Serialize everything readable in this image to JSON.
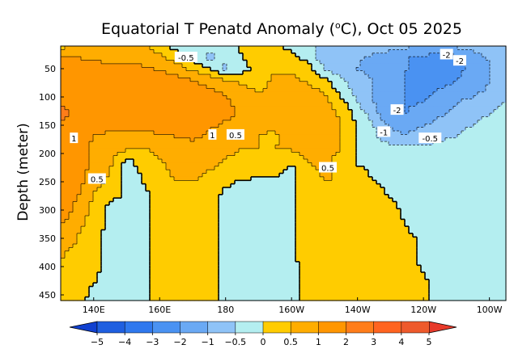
{
  "chart_data": {
    "type": "contour-map",
    "title": "Equatorial T Penatd Anomaly (",
    "title_degree": "o",
    "title_unit_suffix": "C), Oct 05 2025",
    "ylabel": "Depth (meter)",
    "xlabel": "",
    "x_axis": {
      "range": [
        130,
        265
      ],
      "ticks": [
        {
          "value": 140,
          "label": "140E"
        },
        {
          "value": 160,
          "label": "160E"
        },
        {
          "value": 180,
          "label": "180"
        },
        {
          "value": 200,
          "label": "160W"
        },
        {
          "value": 220,
          "label": "140W"
        },
        {
          "value": 240,
          "label": "120W"
        },
        {
          "value": 260,
          "label": "100W"
        }
      ]
    },
    "y_axis": {
      "range": [
        10,
        460
      ],
      "inverted": true,
      "ticks": [
        {
          "value": 50,
          "label": "50"
        },
        {
          "value": 100,
          "label": "100"
        },
        {
          "value": 150,
          "label": "150"
        },
        {
          "value": 200,
          "label": "200"
        },
        {
          "value": 250,
          "label": "250"
        },
        {
          "value": 300,
          "label": "300"
        },
        {
          "value": 350,
          "label": "350"
        },
        {
          "value": 400,
          "label": "400"
        },
        {
          "value": 450,
          "label": "450"
        }
      ]
    },
    "colorbar": {
      "levels": [
        -5,
        -4,
        -3,
        -2,
        -1,
        -0.5,
        0,
        0.5,
        1,
        2,
        3,
        4,
        5
      ],
      "labels": [
        "−5",
        "−4",
        "−3",
        "−2",
        "−1",
        "−0.5",
        "0",
        "0.5",
        "1",
        "2",
        "3",
        "4",
        "5"
      ],
      "colors": [
        "#1f5fe0",
        "#2f78ee",
        "#4a92f2",
        "#6aa9f4",
        "#8fc3f7",
        "#b4eef0",
        "#ffcc00",
        "#ffad00",
        "#ff9600",
        "#ff7d1a",
        "#ff6420",
        "#ee5a2c"
      ],
      "under_color": "#1040d0",
      "over_color": "#e83a2a"
    },
    "contour_labels": [
      {
        "text": "-0.5",
        "lon": 168,
        "depth": 30
      },
      {
        "text": "-2",
        "lon": 247,
        "depth": 25
      },
      {
        "text": "-2",
        "lon": 251,
        "depth": 36
      },
      {
        "text": "-2",
        "lon": 232,
        "depth": 123
      },
      {
        "text": "-1",
        "lon": 228,
        "depth": 162
      },
      {
        "text": "-0.5",
        "lon": 242,
        "depth": 173
      },
      {
        "text": "1",
        "lon": 134,
        "depth": 173
      },
      {
        "text": "1",
        "lon": 176,
        "depth": 167
      },
      {
        "text": "0.5",
        "lon": 183,
        "depth": 167
      },
      {
        "text": "0.5",
        "lon": 211,
        "depth": 225
      },
      {
        "text": "0.5",
        "lon": 141,
        "depth": 245
      }
    ],
    "anomaly_grid": {
      "lon": [
        130,
        135,
        140,
        145,
        150,
        155,
        160,
        165,
        170,
        175,
        180,
        185,
        190,
        195,
        200,
        205,
        210,
        215,
        220,
        225,
        230,
        235,
        240,
        245,
        250,
        255,
        260,
        265
      ],
      "depth": [
        10,
        30,
        50,
        70,
        90,
        110,
        130,
        150,
        170,
        190,
        210,
        230,
        250,
        270,
        290,
        310,
        330,
        350,
        370,
        390,
        410,
        430,
        450,
        460
      ],
      "values": [
        [
          0.3,
          0.9,
          0.8,
          0.7,
          0.8,
          0.6,
          0.3,
          -0.2,
          -0.3,
          -0.4,
          -0.1,
          0.05,
          0.1,
          0.05,
          -0.1,
          -0.3,
          -0.7,
          -0.8,
          -0.6,
          -0.4,
          -0.6,
          -0.8,
          -0.9,
          -1.0,
          -0.8,
          -0.6,
          -0.6,
          -0.5
        ],
        [
          1.0,
          1.0,
          0.9,
          0.9,
          0.8,
          0.7,
          0.6,
          0.3,
          -0.2,
          -0.6,
          -0.4,
          0.0,
          0.3,
          0.3,
          0.1,
          -0.2,
          -0.8,
          -1.0,
          -0.9,
          -1.2,
          -1.5,
          -2.0,
          -2.2,
          -2.5,
          -2.3,
          -1.5,
          -0.9,
          -0.8
        ],
        [
          1.2,
          1.2,
          1.2,
          1.1,
          1.2,
          1.1,
          0.9,
          0.7,
          0.4,
          0.0,
          -0.6,
          -0.2,
          0.2,
          0.4,
          0.4,
          0.2,
          -0.5,
          -0.9,
          -1.0,
          -1.1,
          -1.4,
          -2.0,
          -2.4,
          -2.6,
          -2.4,
          -1.6,
          -1.0,
          -0.8
        ],
        [
          1.6,
          1.3,
          1.2,
          1.3,
          1.3,
          1.5,
          1.4,
          1.2,
          1.0,
          0.8,
          0.5,
          0.4,
          0.3,
          0.6,
          0.6,
          0.4,
          0.1,
          -0.4,
          -0.9,
          -1.0,
          -1.5,
          -2.1,
          -2.6,
          -2.4,
          -2.0,
          -1.5,
          -1.0,
          -0.8
        ],
        [
          1.8,
          1.6,
          1.5,
          1.5,
          1.6,
          1.8,
          1.7,
          1.5,
          1.3,
          1.1,
          0.9,
          0.6,
          0.5,
          0.6,
          0.8,
          0.7,
          0.5,
          -0.2,
          -0.7,
          -1.0,
          -1.5,
          -2.0,
          -2.3,
          -1.9,
          -1.6,
          -1.2,
          -0.9,
          -0.7
        ],
        [
          2.0,
          1.8,
          1.6,
          1.6,
          1.8,
          1.7,
          1.8,
          1.8,
          1.6,
          1.4,
          1.1,
          0.8,
          0.6,
          0.7,
          0.9,
          0.9,
          0.7,
          0.2,
          -0.5,
          -1.0,
          -1.6,
          -2.1,
          -2.0,
          -1.5,
          -1.0,
          -0.8,
          -0.6,
          -0.5
        ],
        [
          2.1,
          1.9,
          1.5,
          1.4,
          1.5,
          1.6,
          1.7,
          1.7,
          1.6,
          1.5,
          1.2,
          0.9,
          0.7,
          0.7,
          0.9,
          1.0,
          0.8,
          0.4,
          -0.2,
          -0.8,
          -1.6,
          -2.0,
          -1.6,
          -1.1,
          -0.8,
          -0.6,
          -0.5,
          -0.4
        ],
        [
          2.0,
          1.6,
          1.2,
          1.1,
          1.1,
          1.2,
          1.3,
          1.3,
          1.2,
          1.1,
          0.9,
          0.7,
          0.6,
          0.6,
          0.8,
          0.9,
          0.8,
          0.5,
          0.0,
          -0.5,
          -1.1,
          -1.3,
          -1.0,
          -0.8,
          -0.6,
          -0.5,
          -0.4,
          -0.3
        ],
        [
          1.7,
          1.4,
          1.0,
          0.9,
          0.9,
          0.8,
          0.9,
          1.0,
          1.1,
          0.9,
          0.8,
          0.6,
          0.5,
          0.4,
          0.7,
          0.9,
          0.9,
          0.5,
          0.0,
          -0.4,
          -0.8,
          -0.9,
          -0.7,
          -0.6,
          -0.5,
          -0.4,
          -0.4,
          -0.3
        ],
        [
          1.6,
          1.2,
          0.9,
          1.0,
          0.6,
          0.5,
          0.7,
          0.8,
          0.8,
          0.7,
          0.6,
          0.5,
          0.5,
          0.5,
          0.6,
          0.8,
          0.8,
          0.5,
          0.0,
          -0.2,
          -0.4,
          -0.4,
          -0.4,
          -0.4,
          -0.3,
          -0.3,
          -0.3,
          -0.3
        ],
        [
          1.8,
          1.3,
          0.8,
          0.6,
          -0.1,
          0.2,
          0.5,
          0.6,
          0.7,
          0.6,
          0.5,
          0.4,
          0.3,
          0.2,
          0.1,
          0.6,
          0.7,
          0.3,
          -0.1,
          -0.2,
          -0.3,
          -0.3,
          -0.3,
          -0.3,
          -0.3,
          -0.3,
          -0.3,
          -0.3
        ],
        [
          2.0,
          1.3,
          0.8,
          0.5,
          -0.2,
          0.1,
          0.4,
          0.6,
          0.6,
          0.5,
          0.4,
          0.3,
          0.2,
          0.1,
          -0.1,
          0.3,
          0.6,
          0.4,
          0.1,
          -0.1,
          -0.2,
          -0.2,
          -0.2,
          -0.2,
          -0.2,
          -0.2,
          -0.2,
          -0.2
        ],
        [
          1.9,
          1.2,
          0.7,
          0.4,
          -0.3,
          0.0,
          0.3,
          0.5,
          0.5,
          0.4,
          0.1,
          -0.1,
          -0.1,
          -0.1,
          -0.1,
          0.2,
          0.5,
          0.5,
          0.3,
          0.0,
          -0.1,
          -0.2,
          -0.2,
          -0.2,
          -0.2,
          -0.2,
          -0.2,
          -0.2
        ],
        [
          1.6,
          1.1,
          0.5,
          0.3,
          -0.1,
          -0.1,
          0.2,
          0.4,
          0.4,
          0.3,
          -0.1,
          -0.2,
          -0.2,
          -0.2,
          -0.1,
          0.2,
          0.4,
          0.5,
          0.4,
          0.2,
          -0.1,
          -0.2,
          -0.2,
          -0.2,
          -0.3,
          -0.2,
          -0.2,
          -0.2
        ],
        [
          1.4,
          0.9,
          0.4,
          -0.1,
          -0.2,
          -0.1,
          0.2,
          0.3,
          0.3,
          0.2,
          -0.2,
          -0.3,
          -0.3,
          -0.2,
          -0.1,
          0.2,
          0.4,
          0.5,
          0.4,
          0.3,
          0.1,
          -0.2,
          -0.2,
          -0.2,
          -0.3,
          -0.2,
          -0.2,
          -0.2
        ],
        [
          1.2,
          0.8,
          0.3,
          -0.2,
          -0.2,
          -0.1,
          0.2,
          0.3,
          0.3,
          0.2,
          -0.2,
          -0.3,
          -0.3,
          -0.2,
          -0.1,
          0.2,
          0.4,
          0.5,
          0.4,
          0.3,
          0.2,
          -0.1,
          -0.2,
          -0.2,
          -0.3,
          -0.2,
          -0.2,
          -0.2
        ],
        [
          1.0,
          0.6,
          0.3,
          -0.2,
          -0.2,
          -0.1,
          0.1,
          0.3,
          0.3,
          0.2,
          -0.2,
          -0.3,
          -0.3,
          -0.2,
          -0.1,
          0.2,
          0.3,
          0.4,
          0.4,
          0.3,
          0.2,
          0.0,
          -0.2,
          -0.2,
          -0.2,
          -0.2,
          -0.2,
          -0.2
        ],
        [
          0.8,
          0.5,
          0.2,
          -0.2,
          -0.2,
          -0.1,
          0.1,
          0.3,
          0.3,
          0.2,
          -0.2,
          -0.3,
          -0.3,
          -0.2,
          -0.1,
          0.2,
          0.2,
          0.3,
          0.4,
          0.3,
          0.2,
          0.1,
          -0.1,
          -0.2,
          -0.2,
          -0.2,
          -0.2,
          -0.2
        ],
        [
          0.6,
          0.4,
          0.2,
          -0.2,
          -0.2,
          -0.1,
          0.1,
          0.3,
          0.3,
          0.2,
          -0.2,
          -0.3,
          -0.3,
          -0.2,
          -0.1,
          0.2,
          0.2,
          0.3,
          0.4,
          0.3,
          0.3,
          0.1,
          -0.1,
          -0.2,
          -0.2,
          -0.2,
          -0.2,
          -0.2
        ],
        [
          0.5,
          0.3,
          0.1,
          -0.2,
          -0.2,
          -0.1,
          0.1,
          0.3,
          0.3,
          0.2,
          -0.2,
          -0.3,
          -0.3,
          -0.2,
          -0.1,
          0.2,
          0.2,
          0.3,
          0.4,
          0.3,
          0.3,
          0.2,
          -0.1,
          -0.2,
          -0.2,
          -0.2,
          -0.2,
          -0.2
        ],
        [
          0.4,
          0.3,
          0.1,
          -0.2,
          -0.2,
          -0.1,
          0.1,
          0.2,
          0.3,
          0.2,
          -0.2,
          -0.3,
          -0.3,
          -0.2,
          -0.1,
          0.1,
          0.2,
          0.3,
          0.4,
          0.3,
          0.3,
          0.2,
          0.0,
          -0.2,
          -0.2,
          -0.2,
          -0.2,
          -0.2
        ],
        [
          0.3,
          0.2,
          0.0,
          -0.2,
          -0.2,
          -0.1,
          0.1,
          0.2,
          0.3,
          0.2,
          -0.2,
          -0.3,
          -0.3,
          -0.2,
          -0.1,
          0.1,
          0.1,
          0.2,
          0.4,
          0.3,
          0.3,
          0.2,
          0.1,
          -0.2,
          -0.2,
          -0.2,
          -0.2,
          -0.2
        ],
        [
          0.2,
          0.2,
          -0.1,
          -0.2,
          -0.2,
          -0.1,
          0.1,
          0.2,
          0.3,
          0.2,
          -0.2,
          -0.3,
          -0.3,
          -0.2,
          -0.1,
          0.1,
          0.1,
          0.2,
          0.3,
          0.3,
          0.3,
          0.2,
          0.1,
          -0.2,
          -0.2,
          -0.2,
          -0.2,
          -0.2
        ],
        [
          0.2,
          0.1,
          -0.1,
          -0.2,
          -0.2,
          -0.1,
          0.1,
          0.2,
          0.3,
          0.2,
          -0.2,
          -0.3,
          -0.3,
          -0.2,
          -0.1,
          0.1,
          0.1,
          0.2,
          0.3,
          0.3,
          0.3,
          0.2,
          0.1,
          -0.2,
          -0.2,
          -0.2,
          -0.2,
          -0.2
        ]
      ]
    }
  }
}
